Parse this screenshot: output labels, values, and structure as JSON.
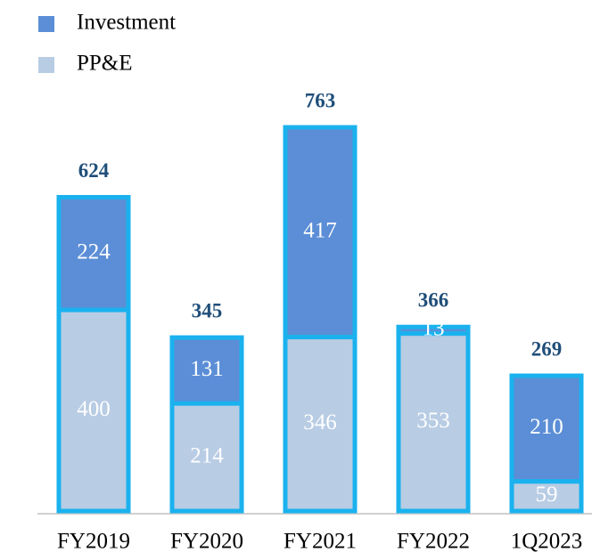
{
  "chart_data": {
    "type": "bar",
    "stacked": true,
    "categories": [
      "FY2019",
      "FY2020",
      "FY2021",
      "FY2022",
      "1Q2023"
    ],
    "series": [
      {
        "name": "Investment",
        "color": "#5b8ed6",
        "values": [
          224,
          131,
          417,
          13,
          210
        ]
      },
      {
        "name": "PP&E",
        "color": "#b8cce4",
        "values": [
          400,
          214,
          346,
          353,
          59
        ]
      }
    ],
    "totals": [
      624,
      345,
      763,
      366,
      269
    ],
    "outline_color": "#1ab2ee"
  }
}
